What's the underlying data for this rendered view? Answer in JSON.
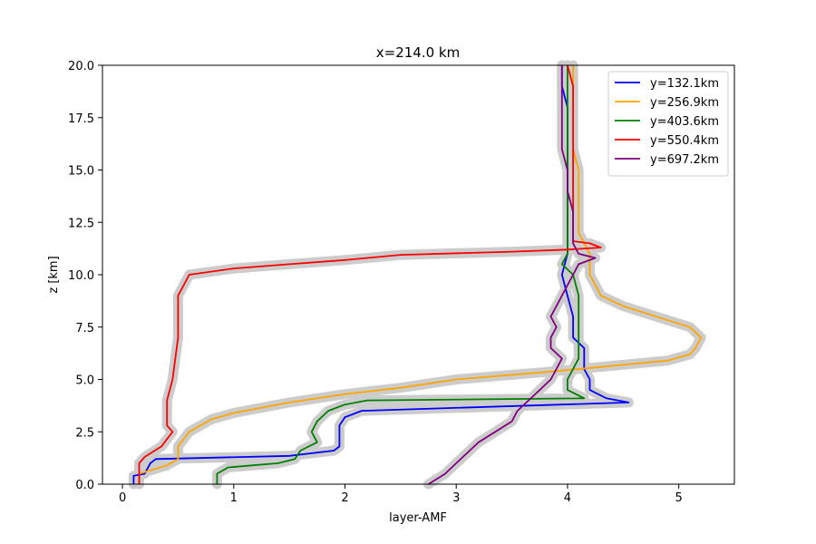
{
  "chart_data": {
    "type": "line",
    "title": "x=214.0 km",
    "xlabel": "layer-AMF",
    "ylabel": "z [km]",
    "xlim": [
      -0.18,
      5.5
    ],
    "ylim": [
      0,
      20
    ],
    "xticks": [
      "0",
      "1",
      "2",
      "3",
      "4",
      "5"
    ],
    "yticks": [
      "0.0",
      "2.5",
      "5.0",
      "7.5",
      "10.0",
      "12.5",
      "15.0",
      "17.5",
      "20.0"
    ],
    "grid": false,
    "legend_position": "top-right",
    "uncertainty_band_color": "#cccccc",
    "series": [
      {
        "name": "y=132.1km",
        "color": "#0000ff",
        "points": [
          [
            0.1,
            0
          ],
          [
            0.1,
            0.4
          ],
          [
            0.2,
            0.5
          ],
          [
            0.25,
            1.0
          ],
          [
            0.3,
            1.2
          ],
          [
            1.5,
            1.35
          ],
          [
            1.9,
            1.6
          ],
          [
            1.95,
            1.8
          ],
          [
            1.95,
            2.8
          ],
          [
            2.0,
            3.2
          ],
          [
            2.15,
            3.5
          ],
          [
            4.55,
            3.9
          ],
          [
            4.35,
            4.1
          ],
          [
            4.2,
            4.5
          ],
          [
            4.2,
            5.0
          ],
          [
            4.15,
            5.5
          ],
          [
            4.15,
            6.5
          ],
          [
            4.05,
            7.0
          ],
          [
            4.05,
            8.0
          ],
          [
            4.0,
            9.0
          ],
          [
            3.95,
            10.0
          ],
          [
            4.0,
            11.0
          ],
          [
            4.0,
            12.0
          ],
          [
            4.0,
            13.0
          ],
          [
            4.0,
            14.0
          ],
          [
            4.0,
            15.0
          ],
          [
            4.0,
            16.0
          ],
          [
            4.0,
            17.0
          ],
          [
            4.0,
            18.0
          ],
          [
            3.95,
            19.0
          ],
          [
            3.95,
            20.0
          ]
        ]
      },
      {
        "name": "y=256.9km",
        "color": "#ffa500",
        "points": [
          [
            0.15,
            0
          ],
          [
            0.15,
            0.5
          ],
          [
            0.4,
            0.9
          ],
          [
            0.5,
            1.2
          ],
          [
            0.5,
            1.8
          ],
          [
            0.6,
            2.5
          ],
          [
            0.8,
            3.1
          ],
          [
            1.0,
            3.4
          ],
          [
            1.5,
            3.9
          ],
          [
            2.0,
            4.3
          ],
          [
            2.5,
            4.6
          ],
          [
            3.0,
            5.0
          ],
          [
            3.9,
            5.4
          ],
          [
            4.9,
            5.9
          ],
          [
            5.1,
            6.2
          ],
          [
            5.15,
            6.5
          ],
          [
            5.2,
            7.0
          ],
          [
            5.1,
            7.5
          ],
          [
            4.8,
            8.0
          ],
          [
            4.5,
            8.5
          ],
          [
            4.3,
            9.0
          ],
          [
            4.2,
            10.0
          ],
          [
            4.2,
            11.0
          ],
          [
            4.1,
            12.0
          ],
          [
            4.1,
            13.0
          ],
          [
            4.1,
            14.0
          ],
          [
            4.1,
            15.0
          ],
          [
            4.05,
            16.0
          ],
          [
            4.05,
            17.0
          ],
          [
            4.05,
            18.0
          ],
          [
            4.05,
            19.0
          ],
          [
            4.05,
            20.0
          ]
        ]
      },
      {
        "name": "y=403.6km",
        "color": "#008000",
        "points": [
          [
            0.85,
            0
          ],
          [
            0.85,
            0.5
          ],
          [
            0.95,
            0.8
          ],
          [
            1.4,
            1.0
          ],
          [
            1.55,
            1.2
          ],
          [
            1.6,
            1.6
          ],
          [
            1.75,
            2.0
          ],
          [
            1.7,
            2.5
          ],
          [
            1.75,
            3.0
          ],
          [
            1.85,
            3.5
          ],
          [
            2.0,
            3.8
          ],
          [
            2.2,
            4.0
          ],
          [
            4.15,
            4.1
          ],
          [
            4.0,
            4.5
          ],
          [
            4.0,
            5.0
          ],
          [
            4.05,
            5.5
          ],
          [
            4.1,
            6.0
          ],
          [
            4.1,
            7.0
          ],
          [
            4.1,
            8.0
          ],
          [
            4.1,
            9.0
          ],
          [
            4.05,
            10.0
          ],
          [
            3.95,
            10.5
          ],
          [
            4.0,
            11.0
          ],
          [
            4.0,
            12.0
          ],
          [
            4.0,
            13.0
          ],
          [
            4.0,
            14.0
          ],
          [
            4.0,
            15.0
          ],
          [
            4.0,
            16.0
          ],
          [
            4.0,
            17.0
          ],
          [
            4.0,
            18.0
          ],
          [
            4.0,
            19.0
          ],
          [
            4.0,
            20.0
          ]
        ]
      },
      {
        "name": "y=550.4km",
        "color": "#ff0000",
        "points": [
          [
            0.15,
            0
          ],
          [
            0.15,
            1.0
          ],
          [
            0.2,
            1.3
          ],
          [
            0.35,
            1.8
          ],
          [
            0.45,
            2.5
          ],
          [
            0.4,
            2.8
          ],
          [
            0.4,
            4.0
          ],
          [
            0.45,
            5.0
          ],
          [
            0.5,
            7.0
          ],
          [
            0.5,
            8.0
          ],
          [
            0.5,
            9.0
          ],
          [
            0.55,
            9.5
          ],
          [
            0.6,
            10.0
          ],
          [
            1.0,
            10.3
          ],
          [
            1.5,
            10.5
          ],
          [
            2.0,
            10.7
          ],
          [
            2.5,
            10.95
          ],
          [
            3.5,
            11.1
          ],
          [
            4.0,
            11.2
          ],
          [
            4.3,
            11.3
          ],
          [
            4.2,
            11.5
          ],
          [
            4.05,
            11.6
          ],
          [
            4.05,
            12.0
          ],
          [
            4.05,
            13.0
          ],
          [
            4.05,
            14.0
          ],
          [
            4.05,
            15.0
          ],
          [
            4.05,
            16.0
          ],
          [
            4.05,
            17.0
          ],
          [
            4.05,
            18.0
          ],
          [
            4.05,
            19.0
          ],
          [
            4.0,
            20.0
          ]
        ]
      },
      {
        "name": "y=697.2km",
        "color": "#800080",
        "points": [
          [
            2.75,
            0
          ],
          [
            2.9,
            0.5
          ],
          [
            3.0,
            1.0
          ],
          [
            3.1,
            1.5
          ],
          [
            3.2,
            2.0
          ],
          [
            3.35,
            2.5
          ],
          [
            3.5,
            3.0
          ],
          [
            3.55,
            3.5
          ],
          [
            3.65,
            4.0
          ],
          [
            3.75,
            4.5
          ],
          [
            3.85,
            5.0
          ],
          [
            3.9,
            5.5
          ],
          [
            3.95,
            6.0
          ],
          [
            3.85,
            6.5
          ],
          [
            3.85,
            7.0
          ],
          [
            3.9,
            7.5
          ],
          [
            3.85,
            8.0
          ],
          [
            3.9,
            8.5
          ],
          [
            3.95,
            9.0
          ],
          [
            4.0,
            9.5
          ],
          [
            4.05,
            10.0
          ],
          [
            4.1,
            10.5
          ],
          [
            4.25,
            10.8
          ],
          [
            4.1,
            11.0
          ],
          [
            4.05,
            11.5
          ],
          [
            4.05,
            12.0
          ],
          [
            4.05,
            13.0
          ],
          [
            4.0,
            14.0
          ],
          [
            4.0,
            15.0
          ],
          [
            3.95,
            16.0
          ],
          [
            3.95,
            17.0
          ],
          [
            3.95,
            18.0
          ],
          [
            3.95,
            19.0
          ],
          [
            3.95,
            20.0
          ]
        ]
      }
    ]
  }
}
